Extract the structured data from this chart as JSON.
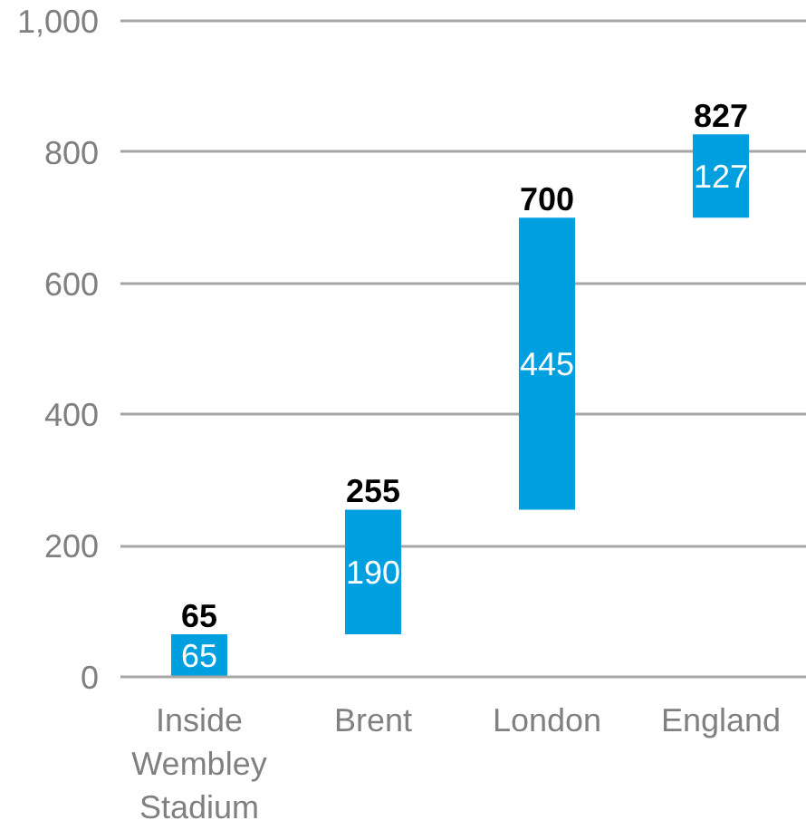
{
  "chart_data": {
    "type": "bar",
    "categories": [
      "Inside Wembley Stadium",
      "Brent",
      "London",
      "England"
    ],
    "values": [
      65,
      190,
      445,
      127
    ],
    "base": [
      0,
      65,
      255,
      700
    ],
    "color": "#009fe0",
    "ylim": [
      0,
      1000
    ],
    "yticks": [
      0,
      200,
      400,
      600,
      800,
      {
        "value": 1000,
        "label": "1,000"
      }
    ],
    "grid": "y",
    "data_labels": true,
    "annotations": [
      {
        "text": "65",
        "x": "Inside Wembley Stadium",
        "y": 65
      },
      {
        "text": "255",
        "x": "Brent",
        "y": 255
      },
      {
        "text": "700",
        "x": "London",
        "y": 700
      },
      {
        "text": "827",
        "x": "England",
        "y": 827
      }
    ]
  }
}
